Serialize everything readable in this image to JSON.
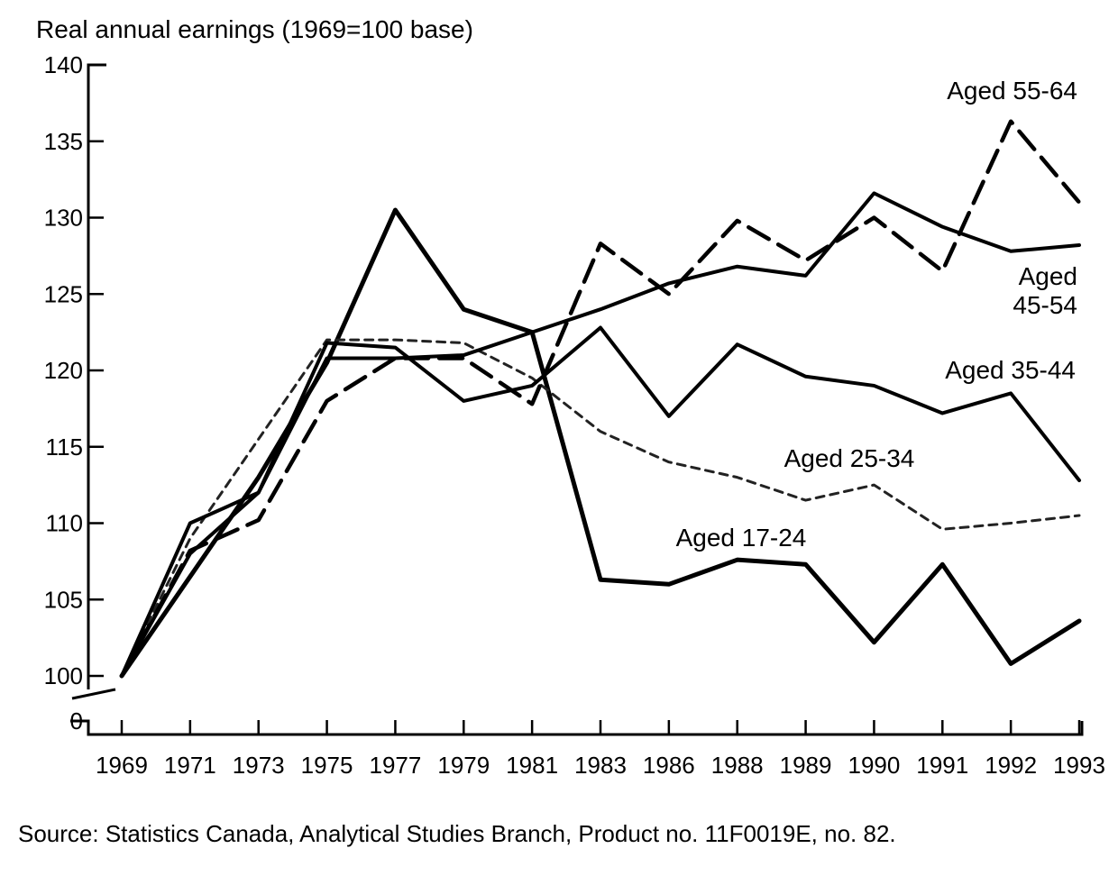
{
  "chart_data": {
    "type": "line",
    "title": "",
    "ylabel": "Real annual earnings (1969=100 base)",
    "xlabel": "",
    "source": "Source: Statistics Canada, Analytical Studies Branch, Product no. 11F0019E, no. 82.",
    "categories": [
      "1969",
      "1971",
      "1973",
      "1975",
      "1977",
      "1979",
      "1981",
      "1983",
      "1986",
      "1988",
      "1989",
      "1990",
      "1991",
      "1992",
      "1993"
    ],
    "y_ticks": [
      "0",
      "100",
      "105",
      "110",
      "115",
      "120",
      "125",
      "130",
      "135",
      "140"
    ],
    "ylim": [
      100,
      140
    ],
    "axis_break": true,
    "grid": false,
    "series": [
      {
        "name": "Aged 17-24",
        "style": "solid-heavy",
        "values": [
          100,
          106.5,
          113,
          120.5,
          130.5,
          124,
          122.5,
          106.3,
          106,
          107.6,
          107.3,
          102.2,
          107.3,
          100.8,
          103.6
        ]
      },
      {
        "name": "Aged 25-34",
        "style": "short-dash",
        "values": [
          100,
          109,
          115.5,
          122,
          122,
          121.8,
          119.5,
          116,
          114,
          113,
          111.5,
          112.5,
          109.6,
          110,
          110.5
        ]
      },
      {
        "name": "Aged 35-44",
        "style": "solid",
        "values": [
          100,
          110,
          112,
          121.8,
          121.5,
          118,
          119,
          122.8,
          117,
          121.7,
          119.6,
          119,
          117.2,
          118.5,
          112.8
        ]
      },
      {
        "name": "Aged 45-54",
        "style": "solid",
        "values": [
          100,
          108,
          112,
          120.8,
          120.8,
          121,
          122.5,
          124,
          125.7,
          126.8,
          126.2,
          131.6,
          129.4,
          127.8,
          128.2
        ]
      },
      {
        "name": "Aged 55-64",
        "style": "long-dash",
        "values": [
          100,
          108.2,
          110.2,
          118,
          120.8,
          120.8,
          117.8,
          128.3,
          125,
          129.8,
          127.2,
          130,
          126.5,
          136.3,
          131
        ]
      }
    ],
    "label_lines": {
      "Aged 45-54": [
        "Aged",
        "45-54"
      ]
    }
  }
}
